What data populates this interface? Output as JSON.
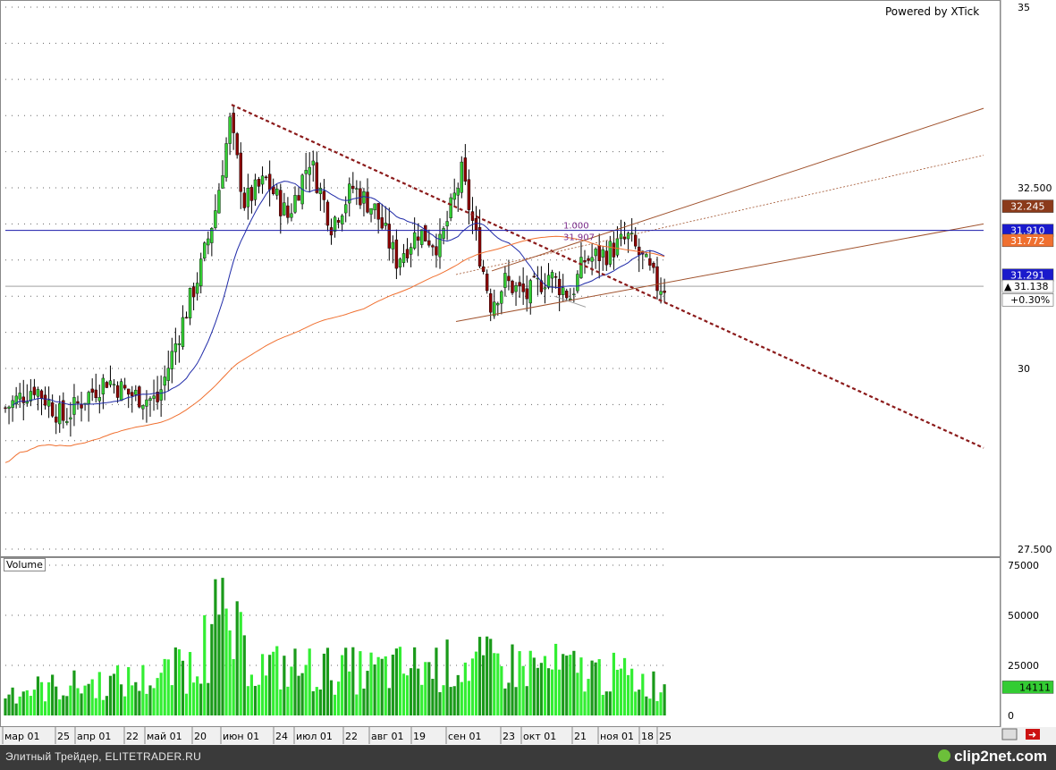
{
  "header": {
    "powered_by": "Powered by XTick"
  },
  "volume_panel": {
    "title": "Volume"
  },
  "footer": {
    "caption": "Элитный Трейдер, ELITETRADER.RU",
    "logo": "clip2net.com"
  },
  "colors": {
    "up_candle": "#33cc33",
    "down_candle": "#8b0000",
    "ma_short": "#1f2aa8",
    "ma_long": "#f07030",
    "trend_line": "#8b1a1a",
    "channel": "#a0522d",
    "level_line": "#1a1aaa"
  },
  "chart_data": {
    "type": "candlestick",
    "title": "",
    "price_axis": {
      "ylim": [
        27.5,
        35
      ],
      "ticks": [
        35,
        32.5,
        30,
        27.5
      ],
      "tick_labels": [
        "35",
        "32.500",
        "30",
        "27.500"
      ]
    },
    "volume_axis": {
      "ylim": [
        0,
        75000
      ],
      "ticks": [
        75000,
        50000,
        25000,
        0
      ],
      "tick_labels": [
        "75000",
        "50000",
        "25000",
        "0"
      ]
    },
    "date_labels": [
      "мар 01",
      "25",
      "апр 01",
      "22",
      "май 01",
      "20",
      "июн 01",
      "24",
      "июл 01",
      "22",
      "авг 01",
      "19",
      "сен 01",
      "23",
      "окт 01",
      "21",
      "ноя 01",
      "18",
      "25"
    ],
    "price_tags": [
      {
        "value": "32.245",
        "bg": "#8b3a1a",
        "fg": "#ffffff"
      },
      {
        "value": "31.910",
        "bg": "#1a1acc",
        "fg": "#ffffff"
      },
      {
        "value": "31.772",
        "bg": "#f07030",
        "fg": "#ffffff"
      },
      {
        "value": "31.291",
        "bg": "#1a1acc",
        "fg": "#ffffff"
      },
      {
        "value": "31.138",
        "bg": "#ffffff",
        "fg": "#000000"
      },
      {
        "value": "+0.30%",
        "bg": "#ffffff",
        "fg": "#000000"
      }
    ],
    "volume_tag": {
      "value": "14111",
      "bg": "#33cc33",
      "fg": "#000000"
    },
    "annotations": [
      {
        "text": "1.000"
      },
      {
        "text": "31.907"
      }
    ],
    "close_anchors": [
      {
        "i": 0,
        "c": 29.45
      },
      {
        "i": 8,
        "c": 29.75
      },
      {
        "i": 16,
        "c": 29.3
      },
      {
        "i": 22,
        "c": 29.6
      },
      {
        "i": 28,
        "c": 29.85
      },
      {
        "i": 34,
        "c": 29.65
      },
      {
        "i": 42,
        "c": 29.55
      },
      {
        "i": 48,
        "c": 30.5
      },
      {
        "i": 54,
        "c": 31.4
      },
      {
        "i": 58,
        "c": 32.2
      },
      {
        "i": 62,
        "c": 33.4
      },
      {
        "i": 66,
        "c": 32.3
      },
      {
        "i": 72,
        "c": 32.6
      },
      {
        "i": 78,
        "c": 32.1
      },
      {
        "i": 84,
        "c": 32.9
      },
      {
        "i": 90,
        "c": 32.0
      },
      {
        "i": 96,
        "c": 32.5
      },
      {
        "i": 102,
        "c": 32.2
      },
      {
        "i": 108,
        "c": 31.5
      },
      {
        "i": 114,
        "c": 31.9
      },
      {
        "i": 120,
        "c": 31.7
      },
      {
        "i": 126,
        "c": 32.7
      },
      {
        "i": 130,
        "c": 31.8
      },
      {
        "i": 134,
        "c": 30.9
      },
      {
        "i": 138,
        "c": 31.2
      },
      {
        "i": 144,
        "c": 31.0
      },
      {
        "i": 150,
        "c": 31.3
      },
      {
        "i": 156,
        "c": 31.0
      },
      {
        "i": 160,
        "c": 31.5
      },
      {
        "i": 166,
        "c": 31.6
      },
      {
        "i": 172,
        "c": 31.8
      },
      {
        "i": 176,
        "c": 31.5
      },
      {
        "i": 180,
        "c": 31.15
      },
      {
        "i": 182,
        "c": 31.14
      }
    ],
    "volume_anchors": [
      {
        "i": 0,
        "v": 12000
      },
      {
        "i": 40,
        "v": 18000
      },
      {
        "i": 52,
        "v": 25000
      },
      {
        "i": 60,
        "v": 45000
      },
      {
        "i": 70,
        "v": 24000
      },
      {
        "i": 100,
        "v": 22000
      },
      {
        "i": 130,
        "v": 26000
      },
      {
        "i": 150,
        "v": 24000
      },
      {
        "i": 170,
        "v": 20000
      },
      {
        "i": 182,
        "v": 14111
      }
    ],
    "volume_spikes": [
      {
        "i": 48,
        "v": 33000
      },
      {
        "i": 55,
        "v": 50000
      },
      {
        "i": 58,
        "v": 68000
      },
      {
        "i": 64,
        "v": 57000
      },
      {
        "i": 66,
        "v": 40000
      }
    ]
  }
}
